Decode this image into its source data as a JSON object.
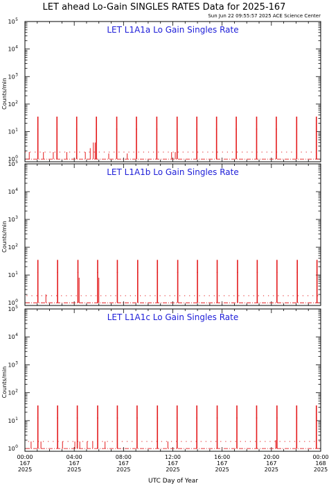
{
  "title": "LET ahead Lo-Gain SINGLES RATES Data for 2025-167",
  "timestamp": "Sun Jun 22 09:55:57 2025 ACE Science Center",
  "colors": {
    "data": "#e41a1c",
    "panel_title": "#1c1cd8",
    "axes": "#000000"
  },
  "chart_data": [
    {
      "type": "line",
      "title": "LET L1A1a Lo Gain Singles Rate",
      "ylabel": "Counts/min",
      "yscale": "log",
      "ylim": [
        0.8,
        100000
      ],
      "xlim": [
        0,
        24
      ],
      "baseline": 1,
      "spikes": [
        {
          "x": 1.05,
          "y": 35
        },
        {
          "x": 2.6,
          "y": 35
        },
        {
          "x": 4.2,
          "y": 35
        },
        {
          "x": 5.8,
          "y": 35
        },
        {
          "x": 7.45,
          "y": 35
        },
        {
          "x": 9.05,
          "y": 35
        },
        {
          "x": 10.7,
          "y": 35
        },
        {
          "x": 12.35,
          "y": 35
        },
        {
          "x": 13.95,
          "y": 35
        },
        {
          "x": 15.55,
          "y": 35
        },
        {
          "x": 17.15,
          "y": 35
        },
        {
          "x": 18.8,
          "y": 35
        },
        {
          "x": 20.4,
          "y": 35
        },
        {
          "x": 22.05,
          "y": 35
        },
        {
          "x": 23.65,
          "y": 35
        }
      ],
      "short_spikes": [
        {
          "x": 0.35,
          "y": 1.8
        },
        {
          "x": 1.5,
          "y": 1.8
        },
        {
          "x": 2.3,
          "y": 1.8
        },
        {
          "x": 3.4,
          "y": 1.8
        },
        {
          "x": 4.9,
          "y": 1.8
        },
        {
          "x": 5.3,
          "y": 2.5
        },
        {
          "x": 5.55,
          "y": 4
        },
        {
          "x": 5.7,
          "y": 4
        },
        {
          "x": 6.8,
          "y": 1.6
        },
        {
          "x": 8.3,
          "y": 1.6
        },
        {
          "x": 11.9,
          "y": 1.8
        },
        {
          "x": 12.2,
          "y": 1.8
        }
      ]
    },
    {
      "type": "line",
      "title": "LET L1A1b Lo Gain Singles Rate",
      "ylabel": "Counts/min",
      "yscale": "log",
      "ylim": [
        0.8,
        100000
      ],
      "xlim": [
        0,
        24
      ],
      "baseline": 1,
      "spikes": [
        {
          "x": 1.05,
          "y": 35
        },
        {
          "x": 2.65,
          "y": 35
        },
        {
          "x": 4.3,
          "y": 35
        },
        {
          "x": 5.9,
          "y": 35
        },
        {
          "x": 7.5,
          "y": 35
        },
        {
          "x": 9.15,
          "y": 35
        },
        {
          "x": 10.75,
          "y": 35
        },
        {
          "x": 12.4,
          "y": 35
        },
        {
          "x": 14.0,
          "y": 35
        },
        {
          "x": 15.6,
          "y": 35
        },
        {
          "x": 17.25,
          "y": 35
        },
        {
          "x": 18.85,
          "y": 35
        },
        {
          "x": 20.45,
          "y": 35
        },
        {
          "x": 22.1,
          "y": 35
        },
        {
          "x": 23.7,
          "y": 35
        }
      ],
      "short_spikes": [
        {
          "x": 1.7,
          "y": 2.0
        },
        {
          "x": 4.4,
          "y": 8
        },
        {
          "x": 6.0,
          "y": 8
        }
      ]
    },
    {
      "type": "line",
      "title": "LET L1A1c Lo Gain Singles Rate",
      "ylabel": "Counts/min",
      "yscale": "log",
      "ylim": [
        0.8,
        100000
      ],
      "xlim": [
        0,
        24
      ],
      "baseline": 1,
      "xlabel": "UTC Day of Year",
      "xticks": [
        {
          "time": "00:00",
          "day": "167",
          "year": "2025",
          "x": 0
        },
        {
          "time": "04:00",
          "day": "167",
          "year": "2025",
          "x": 4
        },
        {
          "time": "08:00",
          "day": "167",
          "year": "2025",
          "x": 8
        },
        {
          "time": "12:00",
          "day": "167",
          "year": "2025",
          "x": 12
        },
        {
          "time": "16:00",
          "day": "167",
          "year": "2025",
          "x": 16
        },
        {
          "time": "20:00",
          "day": "167",
          "year": "2025",
          "x": 20
        },
        {
          "time": "00:00",
          "day": "168",
          "year": "2025",
          "x": 24
        }
      ],
      "spikes": [
        {
          "x": 1.05,
          "y": 35
        },
        {
          "x": 2.65,
          "y": 35
        },
        {
          "x": 4.25,
          "y": 35
        },
        {
          "x": 5.9,
          "y": 35
        },
        {
          "x": 7.5,
          "y": 35
        },
        {
          "x": 9.1,
          "y": 35
        },
        {
          "x": 10.75,
          "y": 35
        },
        {
          "x": 12.35,
          "y": 35
        },
        {
          "x": 13.95,
          "y": 35
        },
        {
          "x": 15.6,
          "y": 35
        },
        {
          "x": 17.2,
          "y": 35
        },
        {
          "x": 18.8,
          "y": 35
        },
        {
          "x": 20.45,
          "y": 35
        },
        {
          "x": 22.05,
          "y": 35
        },
        {
          "x": 23.65,
          "y": 35
        }
      ],
      "short_spikes": [
        {
          "x": 0.5,
          "y": 1.8
        },
        {
          "x": 1.3,
          "y": 1.8
        },
        {
          "x": 3.05,
          "y": 1.8
        },
        {
          "x": 4.05,
          "y": 1.8
        },
        {
          "x": 4.45,
          "y": 1.8
        },
        {
          "x": 5.05,
          "y": 1.8
        },
        {
          "x": 5.5,
          "y": 1.8
        },
        {
          "x": 6.5,
          "y": 1.8
        },
        {
          "x": 11.6,
          "y": 1.8
        },
        {
          "x": 20.35,
          "y": 2
        }
      ]
    }
  ]
}
